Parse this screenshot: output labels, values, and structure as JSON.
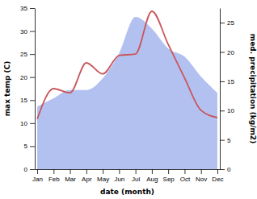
{
  "chart_data": {
    "type": "line",
    "x_label": "date (month)",
    "y_label": "max temp (C)",
    "y2_label": "med. precipitation (kg/m2)",
    "categories": [
      "Jan",
      "Feb",
      "Mar",
      "Apr",
      "May",
      "Jun",
      "Jul",
      "Aug",
      "Sep",
      "Oct",
      "Nov",
      "Dec"
    ],
    "ylim": [
      0,
      35
    ],
    "yticks": [
      0,
      5,
      10,
      15,
      20,
      25,
      30,
      35
    ],
    "y2lim": [
      0,
      27.5
    ],
    "y2ticks": [
      0,
      5,
      10,
      15,
      20,
      25
    ],
    "series": [
      {
        "type": "area",
        "axis": "y2",
        "color": "#b3c1f1",
        "values": [
          10.7,
          12.1,
          13.5,
          13.5,
          15.5,
          19.8,
          26.0,
          24.0,
          20.6,
          19.2,
          15.8,
          13.0
        ]
      },
      {
        "type": "line",
        "color": "#c9575a",
        "values": [
          10.9,
          17.5,
          16.6,
          23.1,
          20.7,
          24.7,
          25.0,
          34.3,
          27.1,
          19.8,
          12.8,
          11.2
        ]
      }
    ]
  }
}
